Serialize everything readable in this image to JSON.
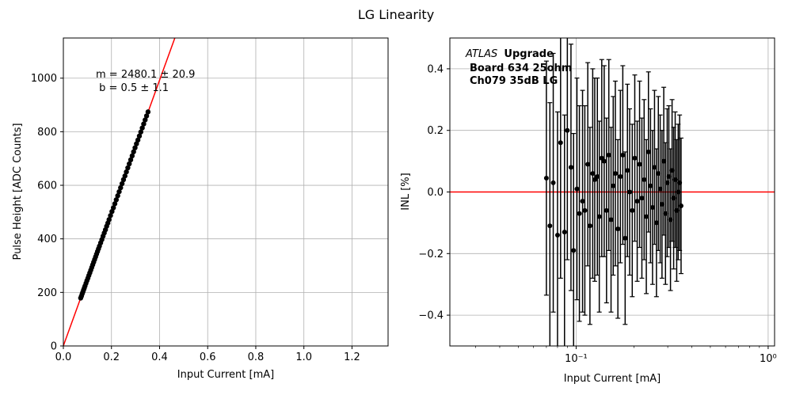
{
  "figure_title": "LG Linearity",
  "chart_data": [
    {
      "type": "scatter",
      "xlabel": "Input Current [mA]",
      "ylabel": "Pulse Height [ADC Counts]",
      "xlim": [
        0,
        1.35
      ],
      "ylim": [
        0,
        1150
      ],
      "xticks": [
        0.0,
        0.2,
        0.4,
        0.6,
        0.8,
        1.0,
        1.2
      ],
      "xtick_labels": [
        "0.0",
        "0.2",
        "0.4",
        "0.6",
        "0.8",
        "1.0",
        "1.2"
      ],
      "yticks": [
        0,
        200,
        400,
        600,
        800,
        1000
      ],
      "ytick_labels": [
        "0",
        "200",
        "400",
        "600",
        "800",
        "1000"
      ],
      "grid": true,
      "fit_line": {
        "slope": 2480.1,
        "intercept": 0.5,
        "color": "#ff0000"
      },
      "annotation": [
        "m = 2480.1 ± 20.9",
        " b = 0.5 ± 1.1"
      ],
      "marker_color": "#000000",
      "points": {
        "x": [
          0.072,
          0.075,
          0.078,
          0.081,
          0.084,
          0.087,
          0.09,
          0.094,
          0.098,
          0.102,
          0.106,
          0.11,
          0.114,
          0.118,
          0.122,
          0.126,
          0.13,
          0.134,
          0.138,
          0.142,
          0.146,
          0.15,
          0.155,
          0.16,
          0.165,
          0.17,
          0.175,
          0.18,
          0.185,
          0.19,
          0.196,
          0.202,
          0.208,
          0.214,
          0.22,
          0.226,
          0.232,
          0.238,
          0.244,
          0.25,
          0.256,
          0.262,
          0.268,
          0.274,
          0.28,
          0.286,
          0.292,
          0.298,
          0.304,
          0.31,
          0.316,
          0.322,
          0.328,
          0.334,
          0.34,
          0.346,
          0.352
        ],
        "y": [
          179,
          186,
          194,
          201,
          209,
          216,
          224,
          234,
          244,
          253,
          263,
          273,
          283,
          293,
          303,
          313,
          323,
          333,
          343,
          353,
          363,
          373,
          385,
          397,
          410,
          422,
          434,
          447,
          459,
          472,
          487,
          502,
          516,
          531,
          546,
          561,
          576,
          591,
          606,
          621,
          635,
          650,
          665,
          680,
          695,
          710,
          725,
          740,
          755,
          769,
          784,
          799,
          814,
          829,
          844,
          859,
          874
        ]
      }
    },
    {
      "type": "scatter",
      "xscale": "log",
      "xlabel": "Input Current [mA]",
      "ylabel": "INL [%]",
      "xlim": [
        0.022,
        1.08
      ],
      "ylim": [
        -0.5,
        0.5
      ],
      "xticks": [
        0.1,
        1
      ],
      "xtick_labels": [
        "10⁻¹",
        "10⁰"
      ],
      "yticks": [
        -0.4,
        -0.2,
        0.0,
        0.2,
        0.4
      ],
      "ytick_labels": [
        "−0.4",
        "−0.2",
        "0.0",
        "0.2",
        "0.4"
      ],
      "grid": true,
      "reference_line": {
        "y": 0,
        "color": "#ff0000"
      },
      "text_lines": {
        "experiment": "ATLAS",
        "tag": "Upgrade",
        "board": "Board 634 25ohm",
        "channel": "Ch079 35dB LG"
      },
      "marker_color": "#000000",
      "points": {
        "x": [
          0.07,
          0.073,
          0.076,
          0.08,
          0.083,
          0.087,
          0.09,
          0.094,
          0.097,
          0.101,
          0.104,
          0.108,
          0.111,
          0.115,
          0.118,
          0.122,
          0.125,
          0.129,
          0.132,
          0.136,
          0.14,
          0.144,
          0.148,
          0.152,
          0.156,
          0.16,
          0.165,
          0.17,
          0.175,
          0.18,
          0.185,
          0.19,
          0.196,
          0.202,
          0.208,
          0.214,
          0.22,
          0.226,
          0.232,
          0.238,
          0.244,
          0.25,
          0.256,
          0.262,
          0.268,
          0.274,
          0.28,
          0.286,
          0.292,
          0.298,
          0.304,
          0.31,
          0.316,
          0.322,
          0.328,
          0.334,
          0.34,
          0.346,
          0.352
        ],
        "y": [
          0.045,
          -0.11,
          0.03,
          -0.14,
          0.16,
          -0.13,
          0.2,
          0.08,
          -0.19,
          0.01,
          -0.07,
          -0.03,
          -0.06,
          0.09,
          -0.11,
          0.06,
          0.04,
          0.05,
          -0.08,
          0.11,
          0.1,
          -0.06,
          0.12,
          -0.09,
          0.02,
          0.06,
          -0.12,
          0.05,
          0.12,
          -0.15,
          0.07,
          0.0,
          -0.06,
          0.11,
          -0.03,
          0.09,
          -0.02,
          0.04,
          -0.08,
          0.13,
          0.02,
          -0.05,
          0.08,
          -0.1,
          0.06,
          0.01,
          -0.04,
          0.1,
          -0.07,
          0.03,
          0.05,
          -0.09,
          0.07,
          -0.02,
          0.04,
          -0.06,
          0.0,
          0.03,
          -0.045
        ],
        "err": [
          0.38,
          0.4,
          0.42,
          0.4,
          0.44,
          0.38,
          0.42,
          0.4,
          0.38,
          0.36,
          0.35,
          0.36,
          0.34,
          0.33,
          0.32,
          0.34,
          0.33,
          0.32,
          0.31,
          0.32,
          0.31,
          0.3,
          0.31,
          0.3,
          0.29,
          0.3,
          0.29,
          0.28,
          0.29,
          0.28,
          0.28,
          0.27,
          0.28,
          0.27,
          0.26,
          0.27,
          0.26,
          0.26,
          0.25,
          0.26,
          0.25,
          0.25,
          0.25,
          0.24,
          0.25,
          0.24,
          0.24,
          0.24,
          0.23,
          0.24,
          0.23,
          0.23,
          0.23,
          0.23,
          0.22,
          0.23,
          0.22,
          0.22,
          0.22
        ]
      }
    }
  ]
}
